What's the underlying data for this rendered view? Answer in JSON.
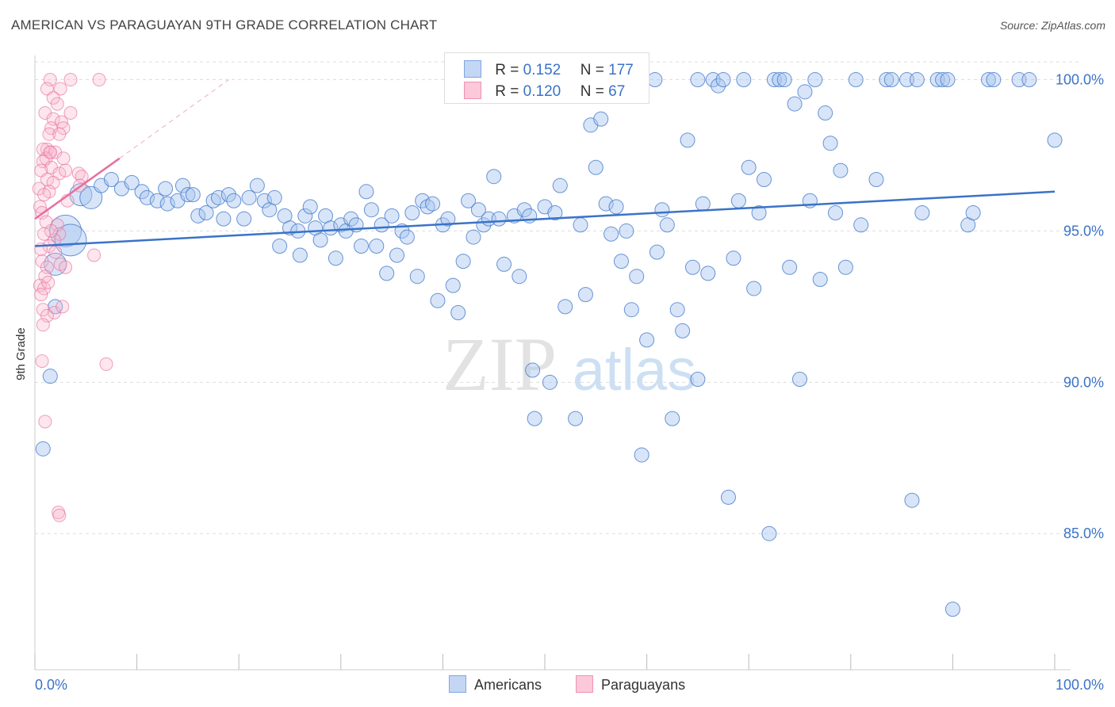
{
  "title": "AMERICAN VS PARAGUAYAN 9TH GRADE CORRELATION CHART",
  "source": "Source: ZipAtlas.com",
  "watermark": {
    "zip": "ZIP",
    "atlas": "atlas"
  },
  "colors": {
    "blue": "#3a73c8",
    "blue_fill": "#a9c6f0",
    "pink": "#e76fa0",
    "pink_fill": "#f8b6cc",
    "grid": "#dddddd",
    "tick_label": "#3a73c8"
  },
  "legend": {
    "rows": [
      {
        "r_label": "R =",
        "r_value": "0.152",
        "n_label": "N =",
        "n_value": "177"
      },
      {
        "r_label": "R =",
        "r_value": "0.120",
        "n_label": "N =",
        "n_value": "67"
      }
    ]
  },
  "bottom_legend": {
    "americans": "Americans",
    "paraguayans": "Paraguayans"
  },
  "chart_data": {
    "type": "scatter",
    "title": "AMERICAN VS PARAGUAYAN 9TH GRADE CORRELATION CHART",
    "xlabel": "",
    "ylabel": "9th Grade",
    "xlim": [
      0,
      100
    ],
    "ylim": [
      80.5,
      100.8
    ],
    "x_tick_labels": [
      "0.0%",
      "100.0%"
    ],
    "y_ticks": [
      85,
      90,
      95,
      100
    ],
    "y_tick_labels": [
      "85.0%",
      "90.0%",
      "95.0%",
      "100.0%"
    ],
    "series": [
      {
        "name": "Americans",
        "r": 0.152,
        "n": 177,
        "trend": {
          "x": [
            0,
            100
          ],
          "y": [
            94.5,
            96.3
          ]
        },
        "points": [
          [
            3.0,
            95.0,
            3
          ],
          [
            3.5,
            94.7,
            3
          ],
          [
            2.0,
            93.9,
            2
          ],
          [
            2.0,
            92.5,
            1
          ],
          [
            1.5,
            90.2,
            1
          ],
          [
            0.8,
            87.8,
            1
          ],
          [
            4.5,
            96.2,
            2
          ],
          [
            5.5,
            96.1,
            2
          ],
          [
            6.5,
            96.5,
            1
          ],
          [
            7.5,
            96.7,
            1
          ],
          [
            8.5,
            96.4,
            1
          ],
          [
            9.5,
            96.6,
            1
          ],
          [
            10.5,
            96.3,
            1
          ],
          [
            11.0,
            96.1,
            1
          ],
          [
            12.0,
            96.0,
            1
          ],
          [
            12.8,
            96.4,
            1
          ],
          [
            13.0,
            95.9,
            1
          ],
          [
            14.0,
            96.0,
            1
          ],
          [
            14.5,
            96.5,
            1
          ],
          [
            15.0,
            96.2,
            1
          ],
          [
            15.5,
            96.2,
            1
          ],
          [
            16.0,
            95.5,
            1
          ],
          [
            16.8,
            95.6,
            1
          ],
          [
            17.5,
            96.0,
            1
          ],
          [
            18.0,
            96.1,
            1
          ],
          [
            18.5,
            95.4,
            1
          ],
          [
            19.0,
            96.2,
            1
          ],
          [
            19.5,
            96.0,
            1
          ],
          [
            20.5,
            95.4,
            1
          ],
          [
            21.0,
            96.1,
            1
          ],
          [
            21.8,
            96.5,
            1
          ],
          [
            22.5,
            96.0,
            1
          ],
          [
            23.0,
            95.7,
            1
          ],
          [
            23.5,
            96.1,
            1
          ],
          [
            24.0,
            94.5,
            1
          ],
          [
            24.5,
            95.5,
            1
          ],
          [
            25.0,
            95.1,
            1
          ],
          [
            25.8,
            95.0,
            1
          ],
          [
            26.0,
            94.2,
            1
          ],
          [
            26.5,
            95.5,
            1
          ],
          [
            27.0,
            95.8,
            1
          ],
          [
            27.5,
            95.1,
            1
          ],
          [
            28.0,
            94.7,
            1
          ],
          [
            28.5,
            95.5,
            1
          ],
          [
            29.0,
            95.1,
            1
          ],
          [
            29.5,
            94.1,
            1
          ],
          [
            30.0,
            95.2,
            1
          ],
          [
            30.5,
            95.0,
            1
          ],
          [
            31.0,
            95.4,
            1
          ],
          [
            31.5,
            95.2,
            1
          ],
          [
            32.0,
            94.5,
            1
          ],
          [
            32.5,
            96.3,
            1
          ],
          [
            33.0,
            95.7,
            1
          ],
          [
            33.5,
            94.5,
            1
          ],
          [
            34.0,
            95.2,
            1
          ],
          [
            34.5,
            93.6,
            1
          ],
          [
            35.0,
            95.5,
            1
          ],
          [
            35.5,
            94.2,
            1
          ],
          [
            36.0,
            95.0,
            1
          ],
          [
            36.5,
            94.8,
            1
          ],
          [
            37.0,
            95.6,
            1
          ],
          [
            37.5,
            93.5,
            1
          ],
          [
            38.0,
            96.0,
            1
          ],
          [
            38.5,
            95.8,
            1
          ],
          [
            39.0,
            95.9,
            1
          ],
          [
            39.5,
            92.7,
            1
          ],
          [
            40.0,
            95.2,
            1
          ],
          [
            40.5,
            95.4,
            1
          ],
          [
            41.0,
            93.2,
            1
          ],
          [
            41.5,
            92.3,
            1
          ],
          [
            42.0,
            94.0,
            1
          ],
          [
            42.5,
            96.0,
            1
          ],
          [
            43.0,
            94.8,
            1
          ],
          [
            43.5,
            95.7,
            1
          ],
          [
            44.0,
            95.2,
            1
          ],
          [
            44.5,
            95.4,
            1
          ],
          [
            45.0,
            96.8,
            1
          ],
          [
            45.5,
            95.4,
            1
          ],
          [
            46.0,
            93.9,
            1
          ],
          [
            47.0,
            95.5,
            1
          ],
          [
            47.5,
            93.5,
            1
          ],
          [
            48.0,
            95.7,
            1
          ],
          [
            48.5,
            95.5,
            1
          ],
          [
            48.8,
            90.4,
            1
          ],
          [
            49.0,
            88.8,
            1
          ],
          [
            50.0,
            95.8,
            1
          ],
          [
            50.5,
            90.0,
            1
          ],
          [
            51.0,
            95.6,
            1
          ],
          [
            51.5,
            96.5,
            1
          ],
          [
            52.0,
            92.5,
            1
          ],
          [
            53.0,
            88.8,
            1
          ],
          [
            53.5,
            95.2,
            1
          ],
          [
            54.0,
            92.9,
            1
          ],
          [
            54.5,
            98.5,
            1
          ],
          [
            55.0,
            97.1,
            1
          ],
          [
            55.5,
            98.7,
            1
          ],
          [
            56.0,
            95.9,
            1
          ],
          [
            56.5,
            94.9,
            1
          ],
          [
            57.0,
            95.8,
            1
          ],
          [
            57.5,
            94.0,
            1
          ],
          [
            58.0,
            95.0,
            1
          ],
          [
            58.5,
            92.4,
            1
          ],
          [
            59.0,
            93.5,
            1
          ],
          [
            59.5,
            87.6,
            1
          ],
          [
            60.0,
            91.4,
            1
          ],
          [
            60.8,
            100.0,
            1
          ],
          [
            61.0,
            94.3,
            1
          ],
          [
            61.5,
            95.7,
            1
          ],
          [
            62.0,
            95.2,
            1
          ],
          [
            62.5,
            88.8,
            1
          ],
          [
            63.0,
            92.4,
            1
          ],
          [
            63.5,
            91.7,
            1
          ],
          [
            64.0,
            98.0,
            1
          ],
          [
            64.5,
            93.8,
            1
          ],
          [
            65.0,
            90.1,
            1
          ],
          [
            65.5,
            95.9,
            1
          ],
          [
            66.0,
            93.6,
            1
          ],
          [
            65.0,
            100.0,
            1
          ],
          [
            66.5,
            100.0,
            1
          ],
          [
            67.0,
            99.8,
            1
          ],
          [
            67.5,
            100.0,
            1
          ],
          [
            68.0,
            86.2,
            1
          ],
          [
            68.5,
            94.1,
            1
          ],
          [
            69.0,
            96.0,
            1
          ],
          [
            69.5,
            100.0,
            1
          ],
          [
            70.0,
            97.1,
            1
          ],
          [
            70.5,
            93.1,
            1
          ],
          [
            71.0,
            95.6,
            1
          ],
          [
            71.5,
            96.7,
            1
          ],
          [
            72.0,
            85.0,
            1
          ],
          [
            72.5,
            100.0,
            1
          ],
          [
            73.0,
            100.0,
            1
          ],
          [
            73.5,
            100.0,
            1
          ],
          [
            74.0,
            93.8,
            1
          ],
          [
            74.5,
            99.2,
            1
          ],
          [
            75.0,
            90.1,
            1
          ],
          [
            75.5,
            99.6,
            1
          ],
          [
            76.0,
            96.0,
            1
          ],
          [
            76.5,
            100.0,
            1
          ],
          [
            77.0,
            93.4,
            1
          ],
          [
            77.5,
            98.9,
            1
          ],
          [
            78.5,
            95.6,
            1
          ],
          [
            78.0,
            97.9,
            1
          ],
          [
            79.0,
            97.0,
            1
          ],
          [
            79.5,
            93.8,
            1
          ],
          [
            80.5,
            100.0,
            1
          ],
          [
            81.0,
            95.2,
            1
          ],
          [
            82.5,
            96.7,
            1
          ],
          [
            83.5,
            100.0,
            1
          ],
          [
            84.0,
            100.0,
            1
          ],
          [
            85.5,
            100.0,
            1
          ],
          [
            86.0,
            86.1,
            1
          ],
          [
            86.5,
            100.0,
            1
          ],
          [
            87.0,
            95.6,
            1
          ],
          [
            88.5,
            100.0,
            1
          ],
          [
            89.0,
            100.0,
            1
          ],
          [
            89.5,
            100.0,
            1
          ],
          [
            90.0,
            82.5,
            1
          ],
          [
            91.5,
            95.2,
            1
          ],
          [
            92.0,
            95.6,
            1
          ],
          [
            93.5,
            100.0,
            1
          ],
          [
            94.0,
            100.0,
            1
          ],
          [
            96.5,
            100.0,
            1
          ],
          [
            97.5,
            100.0,
            1
          ],
          [
            100.0,
            98.0,
            1
          ]
        ]
      },
      {
        "name": "Paraguayans",
        "r": 0.12,
        "n": 67,
        "trend": {
          "x": [
            0,
            8.3
          ],
          "y": [
            95.4,
            97.4
          ]
        },
        "trend_extension": {
          "x": [
            8.3,
            19
          ],
          "y": [
            97.4,
            100.0
          ]
        },
        "points": [
          [
            1.5,
            100.0,
            1
          ],
          [
            3.5,
            100.0,
            1
          ],
          [
            6.3,
            100.0,
            1
          ],
          [
            1.2,
            99.7,
            1
          ],
          [
            2.5,
            99.7,
            1
          ],
          [
            1.8,
            99.4,
            1
          ],
          [
            2.2,
            99.2,
            1
          ],
          [
            3.5,
            98.9,
            1
          ],
          [
            1.0,
            98.9,
            1
          ],
          [
            1.8,
            98.7,
            1
          ],
          [
            2.6,
            98.6,
            1
          ],
          [
            1.6,
            98.4,
            1
          ],
          [
            2.8,
            98.4,
            1
          ],
          [
            1.4,
            98.2,
            1
          ],
          [
            2.4,
            98.2,
            1
          ],
          [
            1.2,
            97.7,
            1
          ],
          [
            1.5,
            97.6,
            1
          ],
          [
            0.8,
            97.7,
            1
          ],
          [
            2.0,
            97.6,
            1
          ],
          [
            1.1,
            97.4,
            1
          ],
          [
            0.8,
            97.3,
            1
          ],
          [
            2.8,
            97.4,
            1
          ],
          [
            1.6,
            97.1,
            1
          ],
          [
            0.6,
            97.0,
            1
          ],
          [
            2.4,
            96.9,
            1
          ],
          [
            4.3,
            96.9,
            1
          ],
          [
            4.6,
            96.8,
            1
          ],
          [
            1.2,
            96.7,
            1
          ],
          [
            1.8,
            96.6,
            1
          ],
          [
            4.4,
            96.5,
            1
          ],
          [
            0.4,
            96.4,
            1
          ],
          [
            1.4,
            96.3,
            1
          ],
          [
            0.5,
            95.8,
            1
          ],
          [
            0.7,
            95.6,
            1
          ],
          [
            1.1,
            95.3,
            1
          ],
          [
            2.2,
            95.2,
            1
          ],
          [
            2.4,
            94.9,
            1
          ],
          [
            0.9,
            94.9,
            1
          ],
          [
            1.9,
            94.7,
            1
          ],
          [
            1.4,
            94.5,
            1
          ],
          [
            0.6,
            94.4,
            1
          ],
          [
            5.8,
            94.2,
            1
          ],
          [
            0.7,
            94.0,
            1
          ],
          [
            1.2,
            93.8,
            1
          ],
          [
            2.5,
            93.9,
            1
          ],
          [
            3.0,
            93.8,
            1
          ],
          [
            1.0,
            93.5,
            1
          ],
          [
            0.5,
            93.2,
            1
          ],
          [
            0.9,
            93.1,
            1
          ],
          [
            0.6,
            92.9,
            1
          ],
          [
            0.8,
            92.4,
            1
          ],
          [
            1.9,
            92.3,
            1
          ],
          [
            1.2,
            92.2,
            1
          ],
          [
            0.8,
            91.9,
            1
          ],
          [
            0.7,
            90.7,
            1
          ],
          [
            7.0,
            90.6,
            1
          ],
          [
            1.0,
            88.7,
            1
          ],
          [
            2.3,
            85.7,
            1
          ],
          [
            2.4,
            85.6,
            1
          ],
          [
            1.5,
            97.6,
            1
          ],
          [
            3.0,
            97.0,
            1
          ],
          [
            0.9,
            96.2,
            1
          ],
          [
            1.6,
            95.0,
            1
          ],
          [
            2.0,
            94.3,
            1
          ],
          [
            1.3,
            93.3,
            1
          ],
          [
            2.7,
            92.5,
            1
          ],
          [
            3.2,
            96.0,
            1
          ]
        ]
      }
    ]
  }
}
